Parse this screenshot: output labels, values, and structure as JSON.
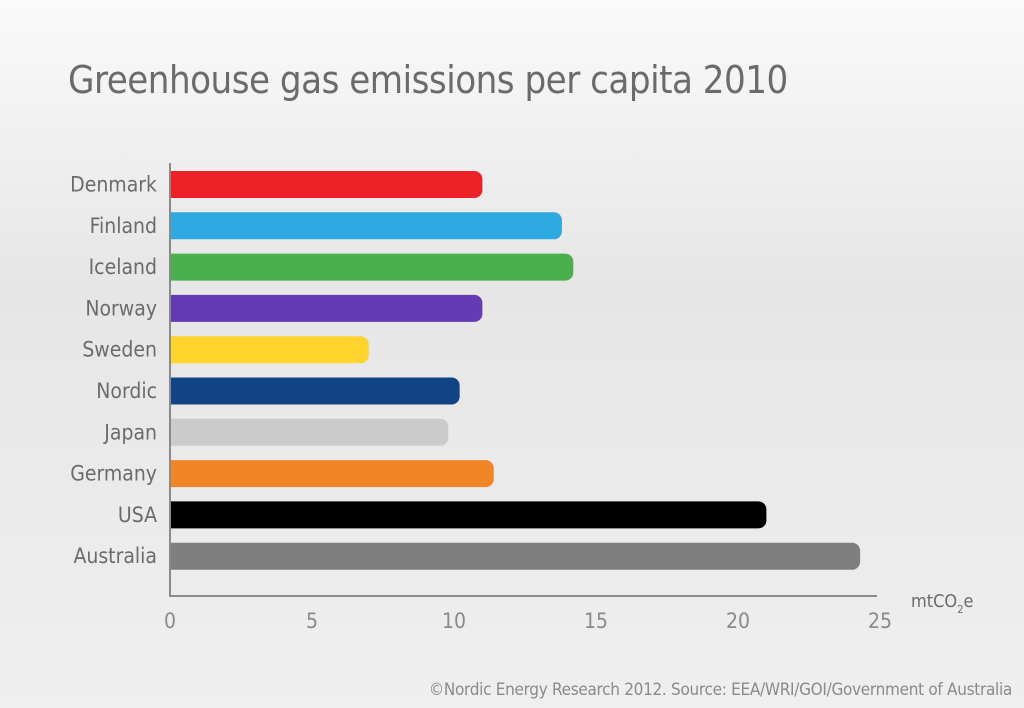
{
  "chart_data": {
    "type": "bar",
    "orientation": "horizontal",
    "title": "Greenhouse gas emissions per capita 2010",
    "xlabel": "mtCO2e",
    "xlabel_parts": {
      "main": "mtCO",
      "sub": "2",
      "end": "e"
    },
    "xlim": [
      0,
      25
    ],
    "xticks": [
      0,
      5,
      10,
      15,
      20,
      25
    ],
    "grid": false,
    "categories": [
      "Denmark",
      "Finland",
      "Iceland",
      "Norway",
      "Sweden",
      "Nordic",
      "Japan",
      "Germany",
      "USA",
      "Australia"
    ],
    "values": [
      11.0,
      13.8,
      14.2,
      11.0,
      7.0,
      10.2,
      9.8,
      11.4,
      21.0,
      24.3
    ],
    "colors": [
      "#ee2128",
      "#2ea9e2",
      "#4ab04d",
      "#643bb4",
      "#ffd42d",
      "#124485",
      "#cbcbcb",
      "#f28627",
      "#000000",
      "#7f7f7f"
    ]
  },
  "source": "©Nordic Energy Research 2012. Source: EEA/WRI/GOI/Government of Australia"
}
